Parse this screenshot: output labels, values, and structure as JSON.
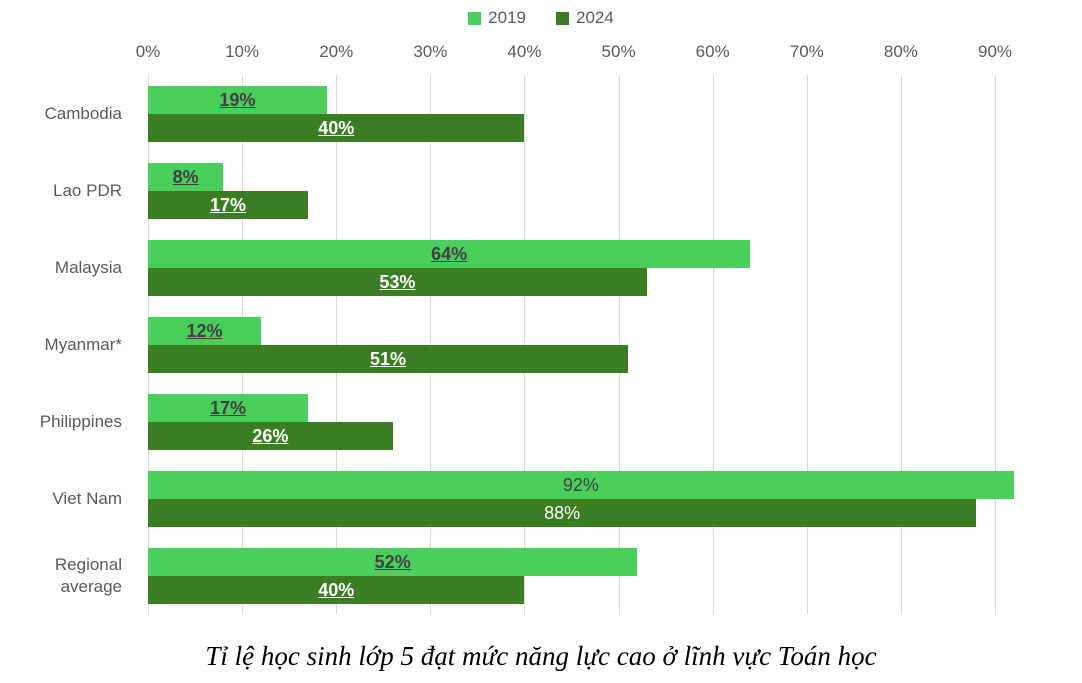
{
  "legend": {
    "items": [
      {
        "label": "2019",
        "color": "#4ACE5C"
      },
      {
        "label": "2024",
        "color": "#3A7D23"
      }
    ]
  },
  "x_axis": {
    "ticks": [
      "0%",
      "10%",
      "20%",
      "30%",
      "40%",
      "50%",
      "60%",
      "70%",
      "80%",
      "90%"
    ]
  },
  "caption": "Tỉ lệ học sinh lớp 5 đạt mức năng lực cao ở lĩnh vực Toán học",
  "chart_data": {
    "type": "bar",
    "orientation": "horizontal",
    "title": "Tỉ lệ học sinh lớp 5 đạt mức năng lực cao ở lĩnh vực Toán học",
    "categories": [
      "Cambodia",
      "Lao PDR",
      "Malaysia",
      "Myanmar*",
      "Philippines",
      "Viet Nam",
      "Regional average"
    ],
    "series": [
      {
        "name": "2019",
        "color": "#4ACE5C",
        "label_color": "#404040",
        "values": [
          19,
          8,
          64,
          12,
          17,
          92,
          52
        ],
        "labels": [
          "19%",
          "8%",
          "64%",
          "12%",
          "17%",
          "92%",
          "52%"
        ]
      },
      {
        "name": "2024",
        "color": "#3A7D23",
        "label_color": "#FFFFFF",
        "values": [
          40,
          17,
          53,
          51,
          26,
          88,
          40
        ],
        "labels": [
          "40%",
          "17%",
          "53%",
          "51%",
          "26%",
          "88%",
          "40%"
        ]
      }
    ],
    "value_label_emphasis": [
      true,
      true,
      true,
      true,
      true,
      false,
      true
    ],
    "xlim": [
      0,
      90
    ],
    "grid": true,
    "legend_position": "top",
    "gridline_color": "#d9d9d9",
    "axis_text_color": "#595959"
  }
}
